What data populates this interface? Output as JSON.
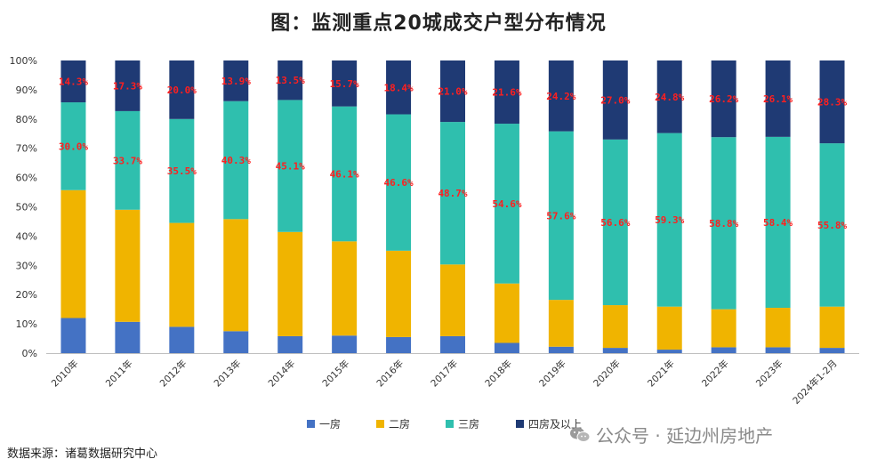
{
  "title": "图：监测重点20城成交户型分布情况",
  "source": "数据来源：诸葛数据研究中心",
  "watermark": "公众号 · 延边州房地产",
  "colors": {
    "一房": "#4472c4",
    "二房": "#f0b400",
    "三房": "#2fbfae",
    "四房及以上": "#1f3a74",
    "label": "#ff1f1f",
    "axis": "#bfbfbf"
  },
  "chart_data": {
    "type": "bar",
    "stacked": true,
    "categories": [
      "2010年",
      "2011年",
      "2012年",
      "2013年",
      "2014年",
      "2015年",
      "2016年",
      "2017年",
      "2018年",
      "2019年",
      "2020年",
      "2021年",
      "2022年",
      "2023年",
      "2024年1-2月"
    ],
    "series": [
      {
        "name": "一房",
        "values": [
          12.0,
          10.7,
          9.0,
          7.5,
          5.8,
          6.0,
          5.5,
          5.8,
          3.5,
          2.2,
          1.8,
          1.2,
          2.0,
          2.0,
          1.8
        ]
      },
      {
        "name": "二房",
        "values": [
          43.7,
          38.3,
          35.5,
          38.3,
          35.6,
          32.2,
          29.5,
          24.5,
          20.3,
          16.0,
          14.6,
          14.7,
          13.0,
          13.5,
          14.1
        ]
      },
      {
        "name": "三房",
        "values": [
          30.0,
          33.7,
          35.5,
          40.3,
          45.1,
          46.1,
          46.6,
          48.7,
          54.6,
          57.6,
          56.6,
          59.3,
          58.8,
          58.4,
          55.8
        ]
      },
      {
        "name": "四房及以上",
        "values": [
          14.3,
          17.3,
          20.0,
          13.9,
          13.5,
          15.7,
          18.4,
          21.0,
          21.6,
          24.2,
          27.0,
          24.8,
          26.2,
          26.1,
          28.3
        ]
      }
    ],
    "data_labels": {
      "三房": [
        "30.0%",
        "33.7%",
        "35.5%",
        "40.3%",
        "45.1%",
        "46.1%",
        "46.6%",
        "48.7%",
        "54.6%",
        "57.6%",
        "56.6%",
        "59.3%",
        "58.8%",
        "58.4%",
        "55.8%"
      ],
      "四房及以上": [
        "14.3%",
        "17.3%",
        "20.0%",
        "13.9%",
        "13.5%",
        "15.7%",
        "18.4%",
        "21.0%",
        "21.6%",
        "24.2%",
        "27.0%",
        "24.8%",
        "26.2%",
        "26.1%",
        "28.3%"
      ]
    },
    "y_ticks": [
      "0%",
      "10%",
      "20%",
      "30%",
      "40%",
      "50%",
      "60%",
      "70%",
      "80%",
      "90%",
      "100%"
    ],
    "ylim": [
      0,
      100
    ],
    "grid": false,
    "legend": "bottom"
  }
}
